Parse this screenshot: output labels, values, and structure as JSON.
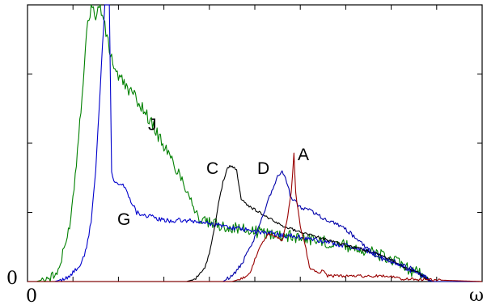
{
  "chart_data": {
    "type": "line",
    "title": "",
    "xlabel": "ω",
    "ylabel": "",
    "xlim": [
      0,
      100
    ],
    "ylim": [
      0,
      100
    ],
    "grid": false,
    "legend": "none",
    "x_tick_labels": {
      "start": "0",
      "end": "ω"
    },
    "y_tick_labels": {
      "start": "0"
    },
    "x_ticks": [
      0,
      10,
      20,
      30,
      40,
      50,
      60,
      70,
      80,
      90,
      100
    ],
    "y_ticks": [
      0,
      25,
      50,
      75,
      100
    ],
    "series": [
      {
        "name": "J",
        "color": "#008000",
        "points": [
          [
            0,
            0
          ],
          [
            2,
            0
          ],
          [
            4,
            1
          ],
          [
            6,
            2
          ],
          [
            7,
            5
          ],
          [
            8,
            11
          ],
          [
            9,
            18
          ],
          [
            10,
            30
          ],
          [
            11,
            48
          ],
          [
            12,
            68
          ],
          [
            13,
            90
          ],
          [
            14,
            100
          ],
          [
            15,
            96
          ],
          [
            16,
            100
          ],
          [
            17,
            92
          ],
          [
            18,
            84
          ],
          [
            19,
            78
          ],
          [
            20,
            74
          ],
          [
            22,
            70
          ],
          [
            24,
            66
          ],
          [
            26,
            61
          ],
          [
            28,
            55
          ],
          [
            30,
            49
          ],
          [
            32,
            43
          ],
          [
            34,
            37
          ],
          [
            36,
            30
          ],
          [
            37,
            25
          ],
          [
            38,
            22
          ],
          [
            40,
            21
          ],
          [
            50,
            18
          ],
          [
            60,
            16
          ],
          [
            70,
            13
          ],
          [
            75,
            11
          ],
          [
            80,
            8
          ],
          [
            83,
            5
          ],
          [
            86,
            3
          ],
          [
            88,
            1
          ],
          [
            89,
            0
          ],
          [
            100,
            0
          ]
        ]
      },
      {
        "name": "G",
        "color": "#0000cc",
        "points": [
          [
            0,
            0
          ],
          [
            6,
            0
          ],
          [
            8,
            1
          ],
          [
            10,
            3
          ],
          [
            12,
            7
          ],
          [
            13,
            12
          ],
          [
            14,
            22
          ],
          [
            15,
            40
          ],
          [
            16,
            70
          ],
          [
            17,
            100
          ],
          [
            18,
            100
          ],
          [
            18.5,
            40
          ],
          [
            19,
            37
          ],
          [
            20,
            35
          ],
          [
            21,
            35
          ],
          [
            22,
            32
          ],
          [
            24,
            25
          ],
          [
            26,
            24
          ],
          [
            28,
            23
          ],
          [
            30,
            22
          ],
          [
            35,
            22
          ],
          [
            40,
            21
          ],
          [
            50,
            18
          ],
          [
            60,
            16
          ],
          [
            70,
            13
          ],
          [
            75,
            11
          ],
          [
            80,
            8
          ],
          [
            83,
            5
          ],
          [
            86,
            3
          ],
          [
            88,
            1
          ],
          [
            89,
            0
          ],
          [
            100,
            0
          ]
        ]
      },
      {
        "name": "C",
        "color": "#000000",
        "points": [
          [
            0,
            0
          ],
          [
            35,
            0
          ],
          [
            37,
            1
          ],
          [
            39,
            5
          ],
          [
            40,
            10
          ],
          [
            41,
            18
          ],
          [
            42,
            28
          ],
          [
            43,
            36
          ],
          [
            44,
            41
          ],
          [
            45,
            42
          ],
          [
            46,
            40
          ],
          [
            47,
            30
          ],
          [
            48,
            28
          ],
          [
            50,
            26
          ],
          [
            52,
            24
          ],
          [
            55,
            21
          ],
          [
            58,
            19
          ],
          [
            62,
            17
          ],
          [
            66,
            15
          ],
          [
            70,
            13
          ],
          [
            75,
            11
          ],
          [
            80,
            8
          ],
          [
            83,
            5
          ],
          [
            86,
            3
          ],
          [
            88,
            1
          ],
          [
            89,
            0
          ],
          [
            100,
            0
          ]
        ]
      },
      {
        "name": "D",
        "color": "#0000aa",
        "points": [
          [
            0,
            0
          ],
          [
            43,
            0
          ],
          [
            45,
            2
          ],
          [
            47,
            6
          ],
          [
            49,
            12
          ],
          [
            51,
            20
          ],
          [
            53,
            30
          ],
          [
            55,
            38
          ],
          [
            56,
            40
          ],
          [
            57,
            36
          ],
          [
            58,
            30
          ],
          [
            60,
            27
          ],
          [
            62,
            26
          ],
          [
            64,
            24
          ],
          [
            66,
            22
          ],
          [
            68,
            21
          ],
          [
            70,
            19
          ],
          [
            72,
            16
          ],
          [
            74,
            13
          ],
          [
            76,
            10
          ],
          [
            78,
            8
          ],
          [
            80,
            7
          ],
          [
            82,
            6
          ],
          [
            84,
            5
          ],
          [
            86,
            3
          ],
          [
            88,
            1
          ],
          [
            89,
            0
          ],
          [
            100,
            0
          ]
        ]
      },
      {
        "name": "A",
        "color": "#990000",
        "points": [
          [
            0,
            0
          ],
          [
            45,
            0
          ],
          [
            47,
            1
          ],
          [
            49,
            3
          ],
          [
            50,
            8
          ],
          [
            51,
            12
          ],
          [
            52,
            15
          ],
          [
            53,
            17
          ],
          [
            55,
            16
          ],
          [
            56,
            15
          ],
          [
            57,
            21
          ],
          [
            58,
            32
          ],
          [
            58.6,
            46
          ],
          [
            59,
            32
          ],
          [
            60,
            20
          ],
          [
            61,
            14
          ],
          [
            62,
            5
          ],
          [
            64,
            3
          ],
          [
            65,
            4
          ],
          [
            66,
            2
          ],
          [
            70,
            2
          ],
          [
            75,
            2
          ],
          [
            80,
            2
          ],
          [
            82,
            1
          ],
          [
            100,
            0
          ]
        ]
      }
    ],
    "annotations": [
      {
        "text": "J",
        "series": "J"
      },
      {
        "text": "G",
        "series": "G"
      },
      {
        "text": "C",
        "series": "C"
      },
      {
        "text": "D",
        "series": "D"
      },
      {
        "text": "A",
        "series": "A"
      }
    ]
  }
}
